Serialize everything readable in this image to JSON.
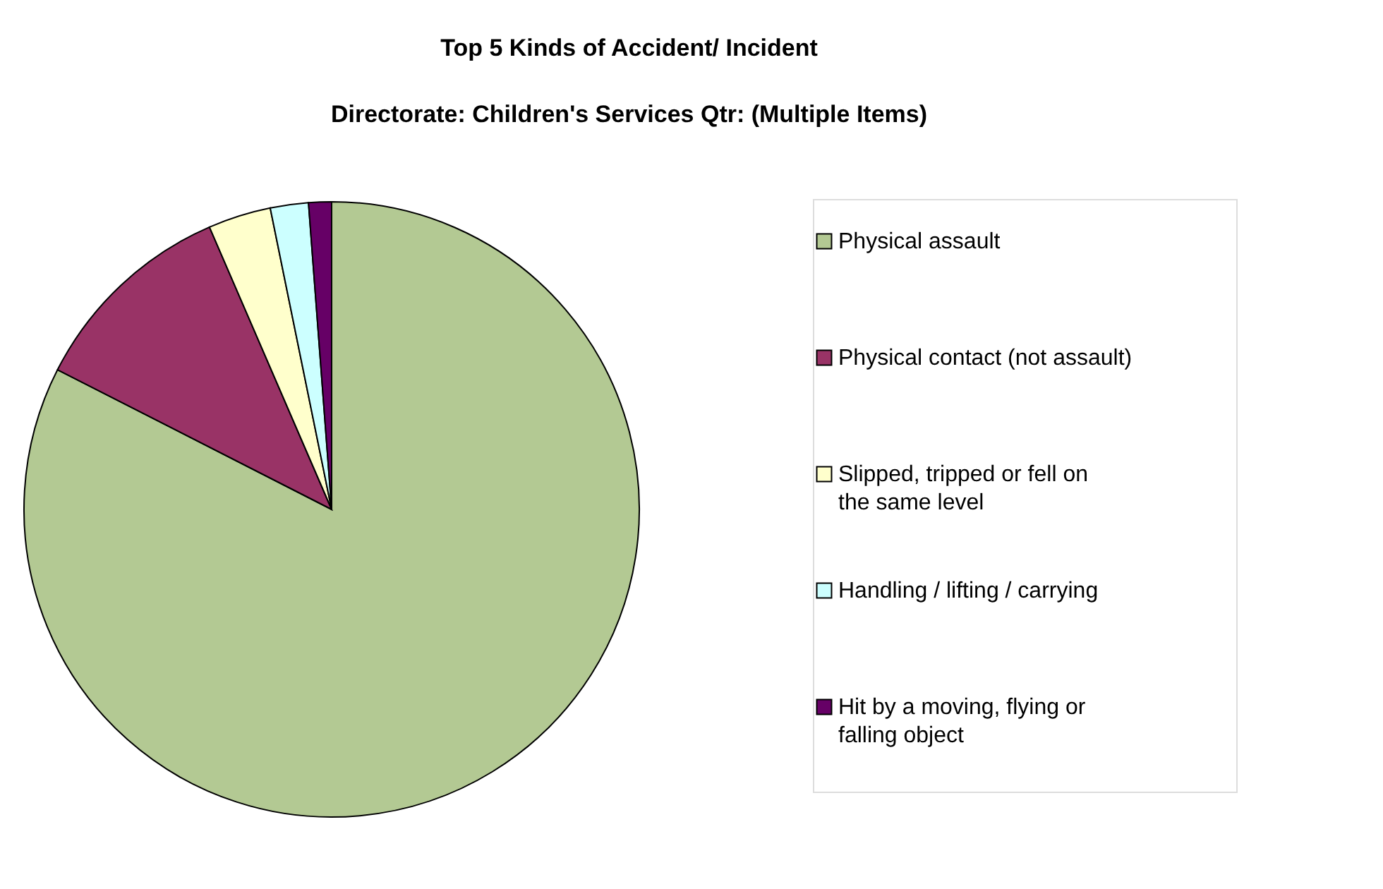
{
  "chart_data": {
    "type": "pie",
    "title": "Top 5 Kinds of Accident/ Incident",
    "subtitle": "Directorate: Children's Services      Qtr: (Multiple Items)",
    "categories": [
      "Physical assault",
      "Physical contact (not assault)",
      "Slipped, tripped or fell on the same level",
      "Handling / lifting / carrying",
      "Hit by a moving, flying or falling object"
    ],
    "values": [
      82.5,
      11,
      3.3,
      2,
      1.2
    ],
    "colors": [
      "#b3c993",
      "#993366",
      "#ffffcc",
      "#ccffff",
      "#660066"
    ],
    "legend": "right"
  }
}
